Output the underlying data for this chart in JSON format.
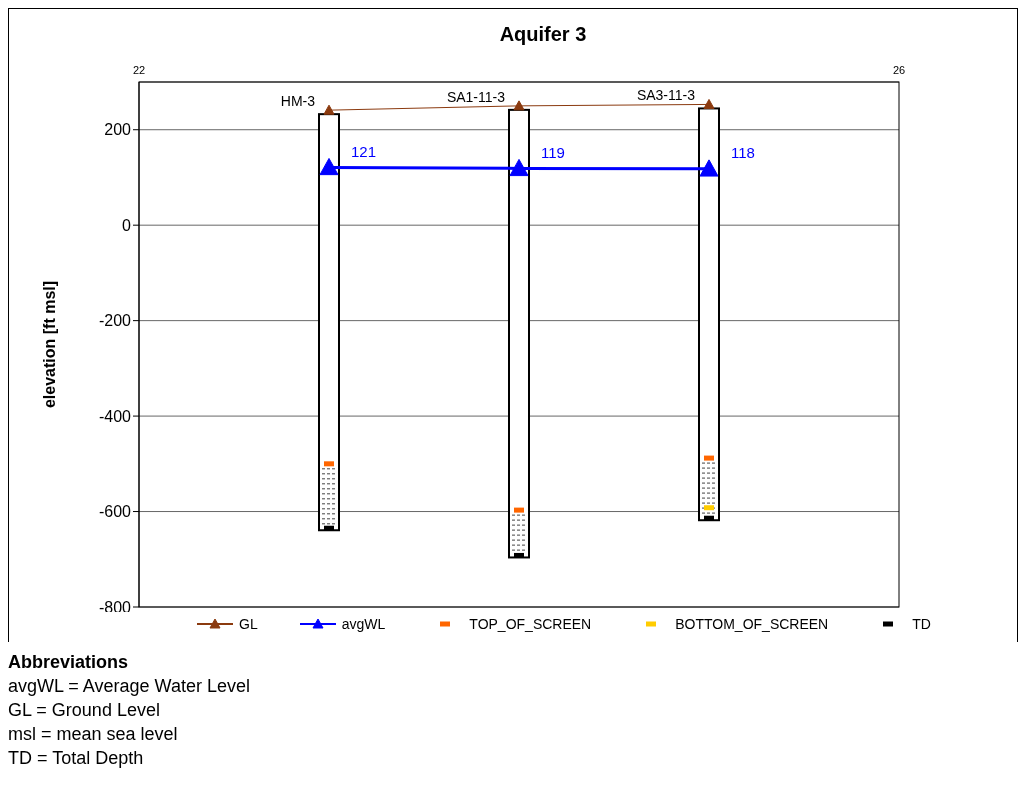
{
  "chart_data": {
    "type": "scatter",
    "title": "Aquifer 3",
    "ylabel": "elevation [ft msl]",
    "x": [
      23,
      24,
      25
    ],
    "series": [
      {
        "name": "GL",
        "type": "line",
        "color": "#8b3a0f",
        "marker": "triangle",
        "values": [
          241,
          250,
          253
        ]
      },
      {
        "name": "avgWL",
        "type": "line",
        "color": "#0000ff",
        "marker": "triangle",
        "values": [
          121,
          119,
          118
        ],
        "value_labels": [
          "121",
          "119",
          "118"
        ]
      },
      {
        "name": "TOP_OF_SCREEN",
        "color": "#ff6600",
        "marker": "square",
        "values": [
          -500,
          -597,
          -488
        ]
      },
      {
        "name": "BOTTOM_OF_SCREEN",
        "color": "#ffcc00",
        "marker": "square",
        "values": [
          null,
          null,
          -592
        ]
      },
      {
        "name": "TD",
        "color": "#000000",
        "marker": "square",
        "values": [
          -635,
          -692,
          -614
        ]
      }
    ],
    "xlim": [
      22,
      26
    ],
    "xticks": [
      22,
      26
    ],
    "ylim": [
      -800,
      300
    ],
    "yticks": [
      -800,
      -600,
      -400,
      -200,
      0,
      200
    ],
    "grid": "y",
    "legend": "bottom",
    "annotations": [
      {
        "text": "HM-3",
        "x": 23,
        "y": 241
      },
      {
        "text": "SA1-11-3",
        "x": 24,
        "y": 250
      },
      {
        "text": "SA3-11-3",
        "x": 25,
        "y": 253
      },
      "Abbreviations",
      "avgWL = Average Water Level",
      "GL = Ground Level",
      "msl = mean sea level",
      "TD = Total Depth"
    ]
  }
}
